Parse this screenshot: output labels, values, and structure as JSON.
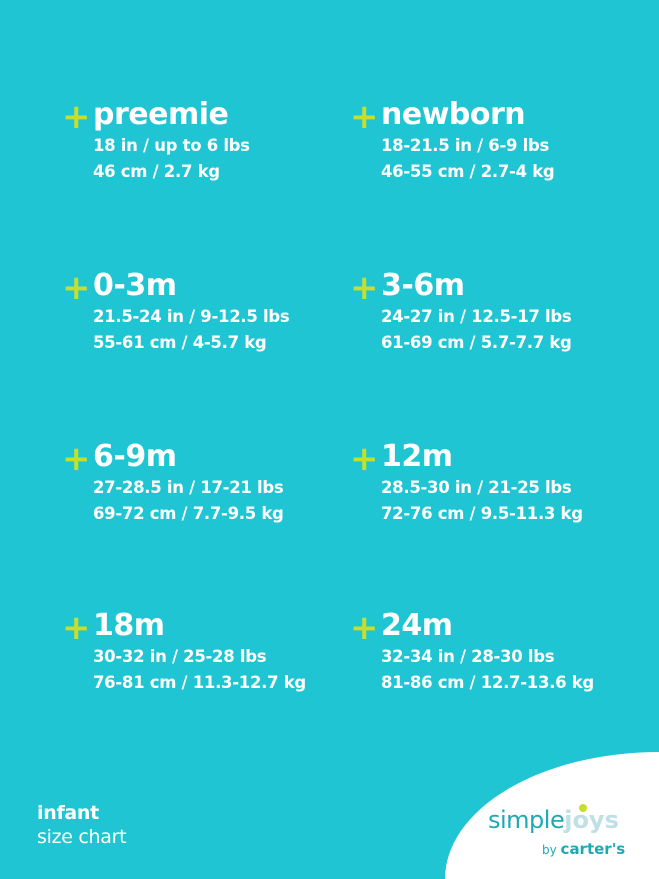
{
  "colors": {
    "background": "#1fc5d2",
    "plus": "#c6df2e",
    "text": "#ffffff"
  },
  "sizes": [
    {
      "name": "preemie",
      "imperial": "18 in / up to 6 lbs",
      "metric": "46 cm / 2.7 kg"
    },
    {
      "name": "newborn",
      "imperial": "18-21.5 in / 6-9 lbs",
      "metric": "46-55 cm / 2.7-4 kg"
    },
    {
      "name": "0-3m",
      "imperial": "21.5-24 in / 9-12.5 lbs",
      "metric": "55-61 cm / 4-5.7 kg"
    },
    {
      "name": "3-6m",
      "imperial": "24-27 in / 12.5-17 lbs",
      "metric": "61-69 cm / 5.7-7.7 kg"
    },
    {
      "name": "6-9m",
      "imperial": "27-28.5 in / 17-21 lbs",
      "metric": "69-72 cm / 7.7-9.5 kg"
    },
    {
      "name": "12m",
      "imperial": "28.5-30 in / 21-25 lbs",
      "metric": "72-76 cm / 9.5-11.3 kg"
    },
    {
      "name": "18m",
      "imperial": "30-32 in / 25-28 lbs",
      "metric": "76-81 cm / 11.3-12.7 kg"
    },
    {
      "name": "24m",
      "imperial": "32-34 in / 28-30 lbs",
      "metric": "81-86 cm / 12.7-13.6 kg"
    }
  ],
  "plus_symbol": "+",
  "footer": {
    "line1": "infant",
    "line2": "size chart"
  },
  "logo": {
    "simple": "simple",
    "joys": "joys",
    "by": "by",
    "brand": "carter's"
  }
}
